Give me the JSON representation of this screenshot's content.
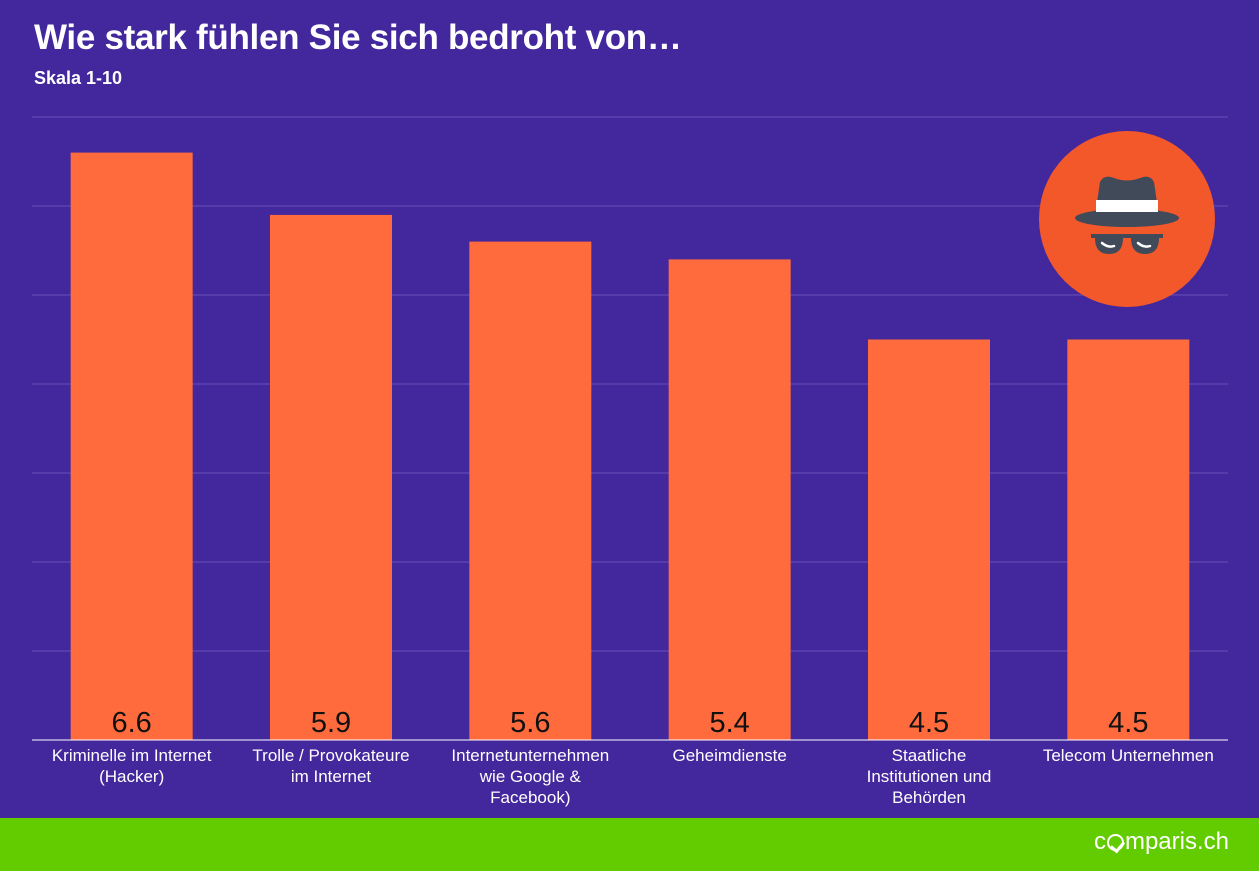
{
  "colors": {
    "background": "#43279c",
    "bar": "#ff6b3d",
    "grid": "#6a52b8",
    "footer": "#62cc00",
    "badge": "#f2582a",
    "text": "#ffffff",
    "value_label": "#111111"
  },
  "chart_data": {
    "type": "bar",
    "title": "Wie stark fühlen Sie sich bedroht von…",
    "subtitle": "Skala 1-10",
    "categories": [
      "Kriminelle im Internet\n(Hacker)",
      "Trolle / Provokateure\nim Internet",
      "Internetunternehmen\nwie Google &\nFacebook)",
      "Geheimdienste",
      "Staatliche\nInstitutionen und\nBehörden",
      "Telecom Unternehmen"
    ],
    "values": [
      6.6,
      5.9,
      5.6,
      5.4,
      4.5,
      4.5
    ],
    "value_labels": [
      "6.6",
      "5.9",
      "5.6",
      "5.4",
      "4.5",
      "4.5"
    ],
    "xlabel": "",
    "ylabel": "",
    "ylim": [
      0,
      7
    ],
    "grid": true,
    "axis_ticks_shown": false
  },
  "badge": {
    "icon": "spy-icon"
  },
  "footer": {
    "brand_before": "c",
    "brand_after": "mparis.ch",
    "brand_icon": "check-circle-icon"
  }
}
